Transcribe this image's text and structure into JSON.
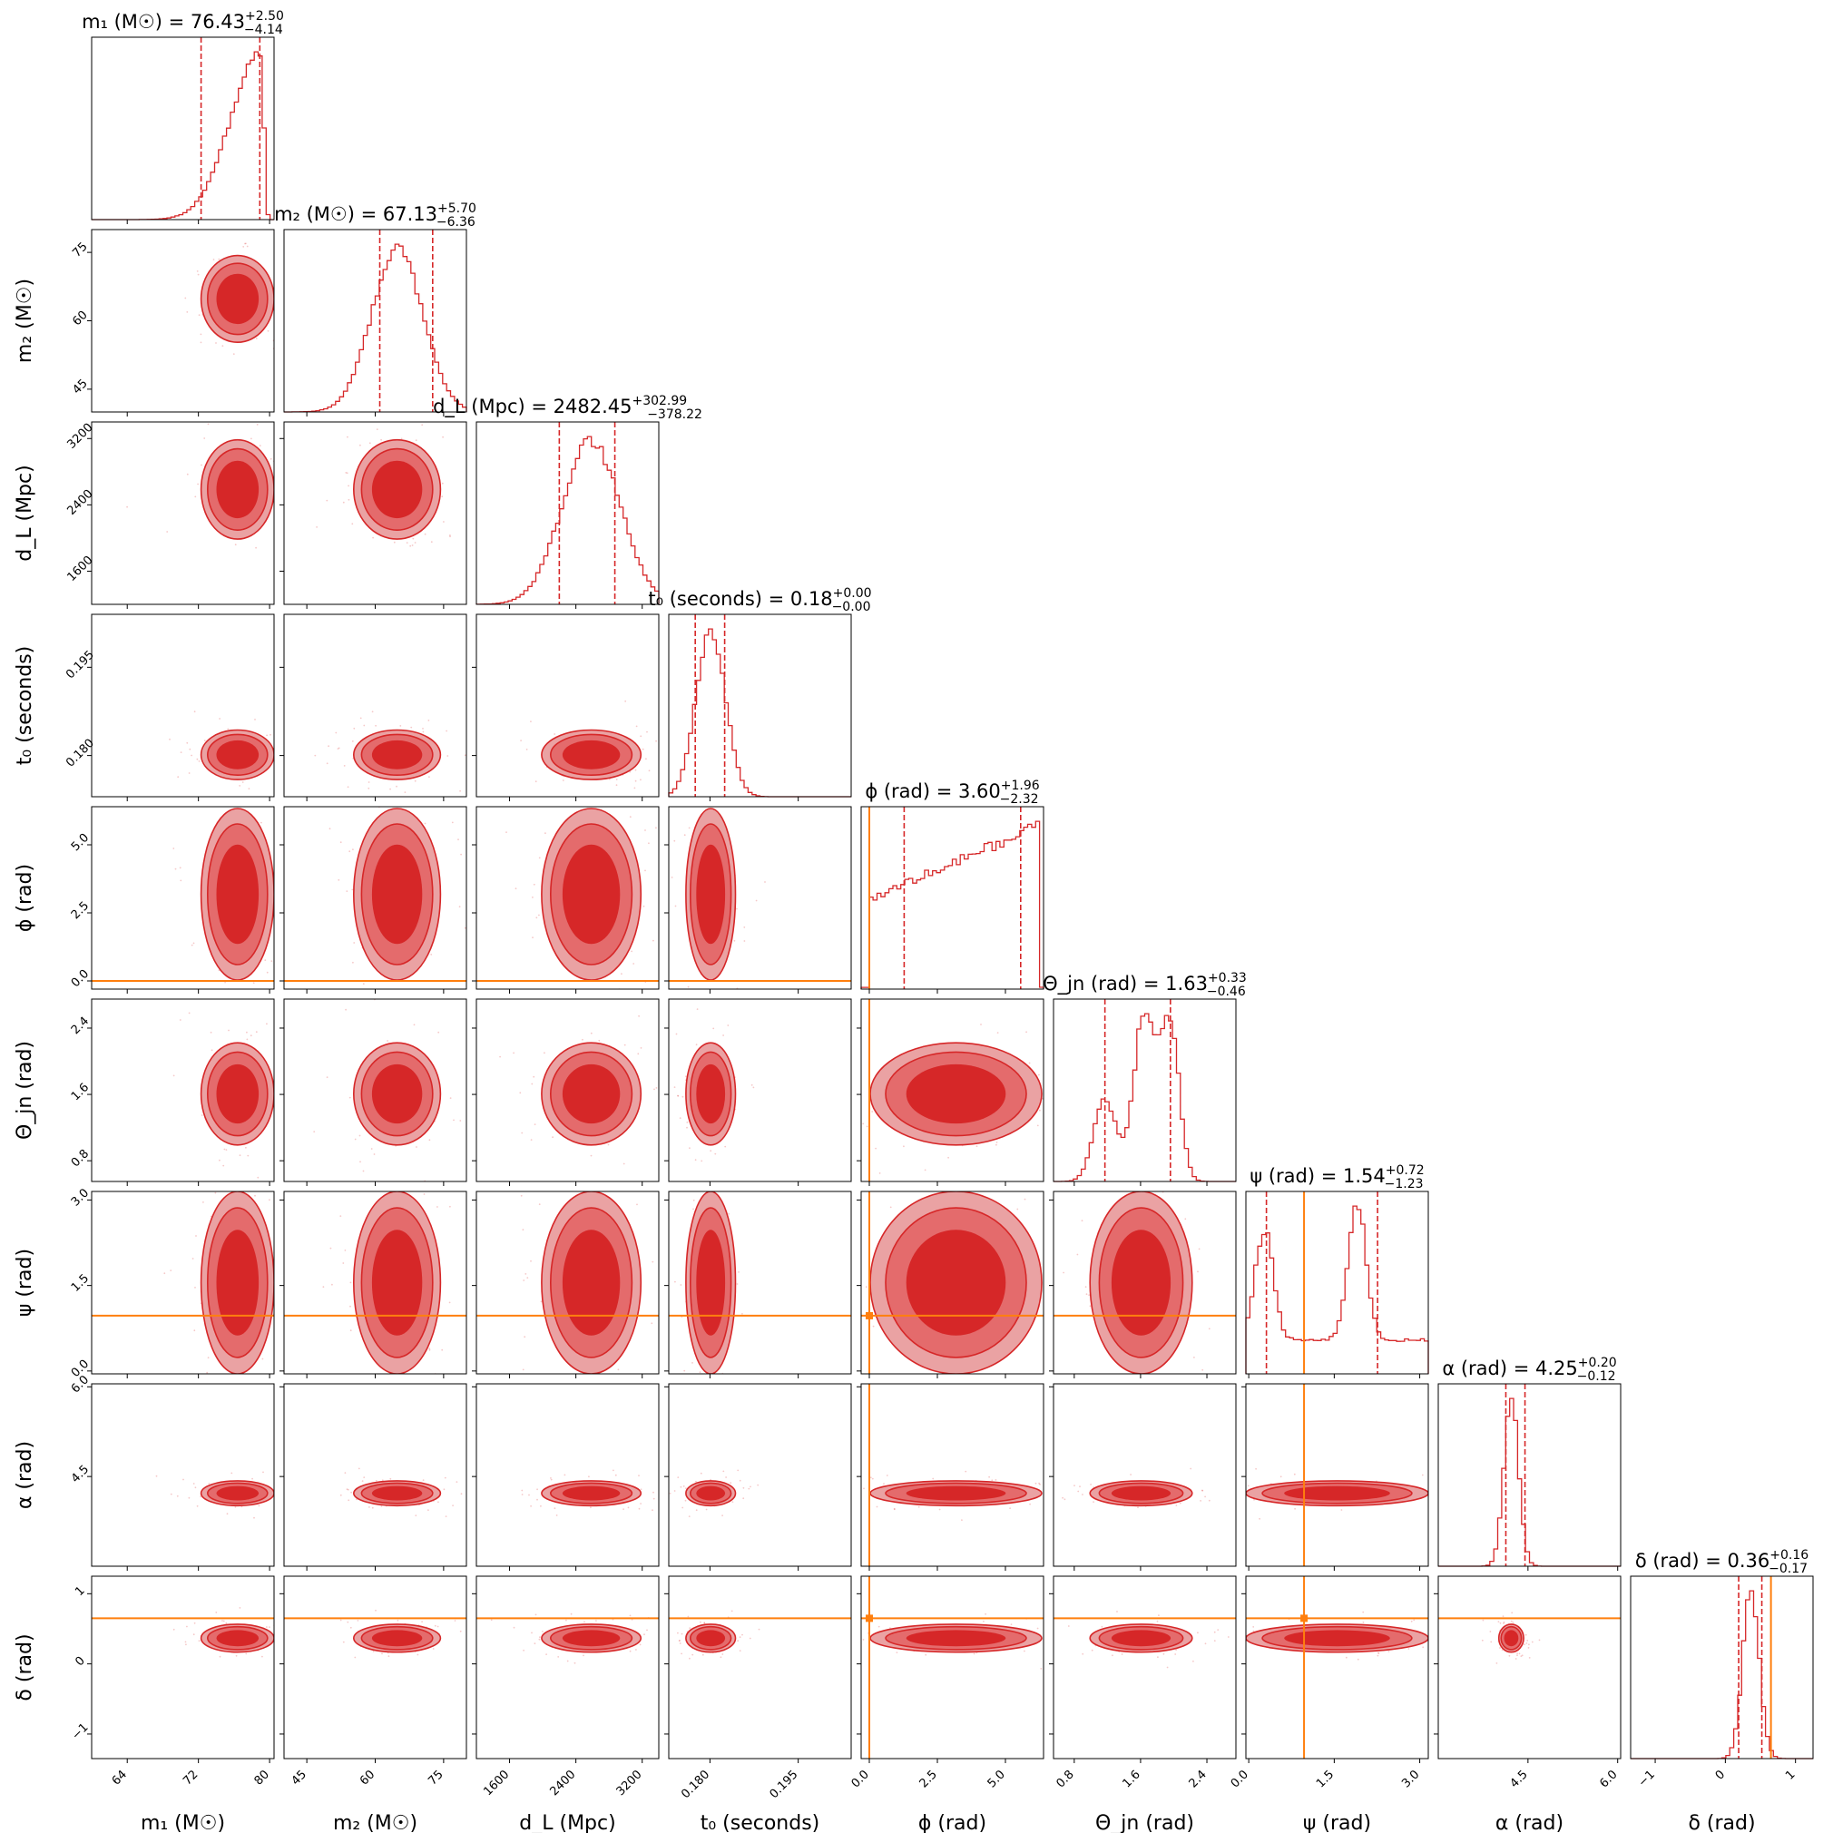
{
  "chart_data": {
    "type": "scatter",
    "subtype": "corner-plot",
    "colors": {
      "posterior": "#d62728",
      "truth": "#ff7f0e"
    },
    "parameters": [
      {
        "key": "m1",
        "label": "m₁ (M☉)",
        "title_name": "m₁ (M☉)",
        "median": "76.43",
        "plus": "+2.50",
        "minus": "−4.14",
        "range": [
          60,
          80.5
        ],
        "ticks": [
          64,
          72,
          80
        ],
        "tick_labels": [
          "64",
          "72",
          "80"
        ],
        "q_lo": 72.3,
        "q_hi": 78.9,
        "truth": null
      },
      {
        "key": "m2",
        "label": "m₂ (M☉)",
        "title_name": "m₂ (M☉)",
        "median": "67.13",
        "plus": "+5.70",
        "minus": "−6.36",
        "range": [
          40,
          80
        ],
        "ticks": [
          45,
          60,
          75
        ],
        "tick_labels": [
          "45",
          "60",
          "75"
        ],
        "q_lo": 61.0,
        "q_hi": 72.6,
        "truth": null
      },
      {
        "key": "dL",
        "label": "d_L (Mpc)",
        "title_name": "d_L (Mpc)",
        "median": "2482.45",
        "plus": "+302.99",
        "minus": "−378.22",
        "range": [
          1200,
          3400
        ],
        "ticks": [
          1600,
          2400,
          3200
        ],
        "tick_labels": [
          "1600",
          "2400",
          "3200"
        ],
        "q_lo": 2200,
        "q_hi": 2870,
        "truth": null
      },
      {
        "key": "t0",
        "label": "t₀ (seconds)",
        "title_name": "t₀ (seconds)",
        "median": "0.18",
        "plus": "+0.00",
        "minus": "−0.00",
        "range": [
          0.173,
          0.204
        ],
        "ticks": [
          0.18,
          0.195
        ],
        "tick_labels": [
          "0.180",
          "0.195"
        ],
        "q_lo": 0.1775,
        "q_hi": 0.1825,
        "truth": null
      },
      {
        "key": "phi",
        "label": "ϕ (rad)",
        "title_name": "ϕ (rad)",
        "median": "3.60",
        "plus": "+1.96",
        "minus": "−2.32",
        "range": [
          -0.3,
          6.4
        ],
        "ticks": [
          0,
          2.5,
          5.0
        ],
        "tick_labels": [
          "0.0",
          "2.5",
          "5.0"
        ],
        "q_lo": 1.28,
        "q_hi": 5.56,
        "truth": 0.0
      },
      {
        "key": "theta_jn",
        "label": "Θ_jn (rad)",
        "title_name": "Θ_jn (rad)",
        "median": "1.63",
        "plus": "+0.33",
        "minus": "−0.46",
        "range": [
          0.55,
          2.75
        ],
        "ticks": [
          0.8,
          1.6,
          2.4
        ],
        "tick_labels": [
          "0.8",
          "1.6",
          "2.4"
        ],
        "q_lo": 1.17,
        "q_hi": 1.96,
        "truth": null
      },
      {
        "key": "psi",
        "label": "ψ (rad)",
        "title_name": "ψ (rad)",
        "median": "1.54",
        "plus": "+0.72",
        "minus": "−1.23",
        "range": [
          -0.05,
          3.15
        ],
        "ticks": [
          0,
          1.5,
          3.0
        ],
        "tick_labels": [
          "0.0",
          "1.5",
          "3.0"
        ],
        "q_lo": 0.31,
        "q_hi": 2.26,
        "truth": 0.97
      },
      {
        "key": "alpha",
        "label": "α (rad)",
        "title_name": "α (rad)",
        "median": "4.25",
        "plus": "+0.20",
        "minus": "−0.12",
        "range": [
          3.0,
          6.05
        ],
        "ticks": [
          4.5,
          6.0
        ],
        "tick_labels": [
          "4.5",
          "6.0"
        ],
        "q_lo": 4.13,
        "q_hi": 4.45,
        "truth": null
      },
      {
        "key": "delta",
        "label": "δ (rad)",
        "title_name": "δ (rad)",
        "median": "0.36",
        "plus": "+0.16",
        "minus": "−0.17",
        "range": [
          -1.35,
          1.25
        ],
        "ticks": [
          -1,
          0,
          1
        ],
        "tick_labels": [
          "−1",
          "0",
          "1"
        ],
        "q_lo": 0.19,
        "q_hi": 0.52,
        "truth": 0.65
      }
    ]
  }
}
